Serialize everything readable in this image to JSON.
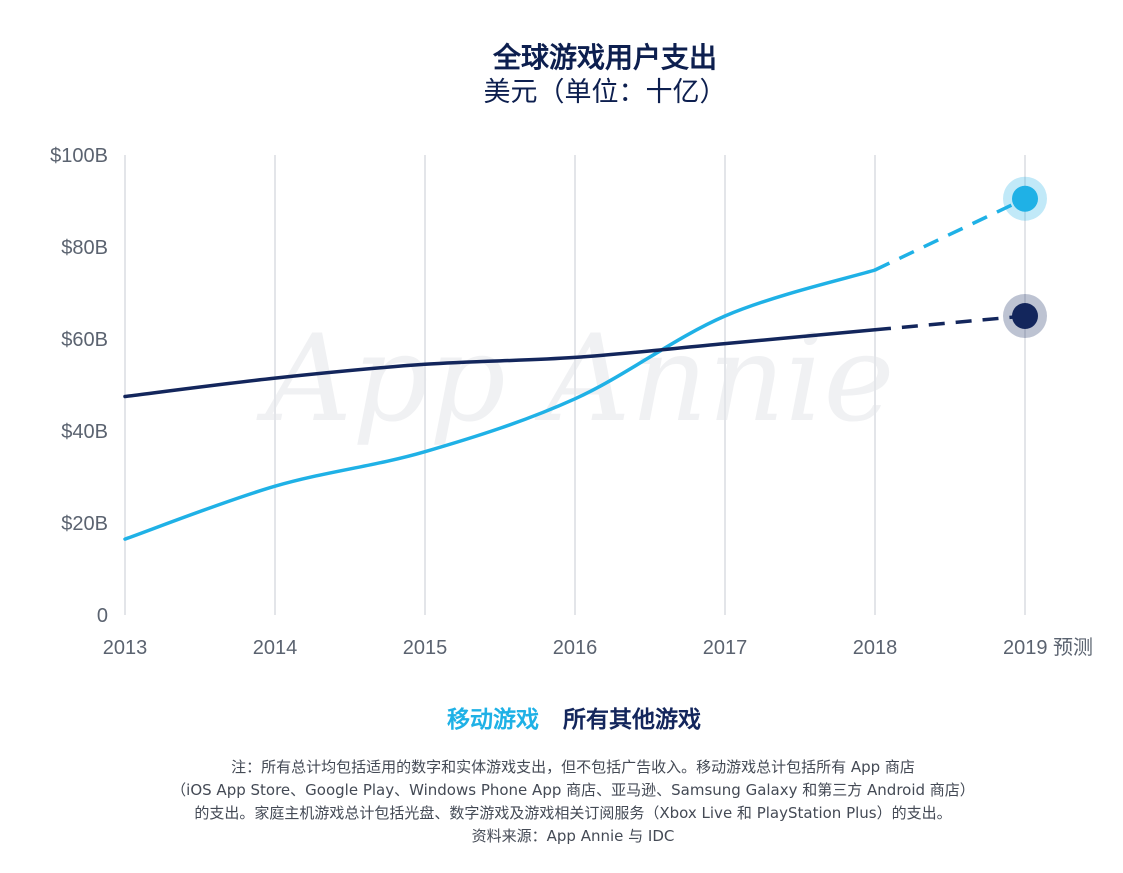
{
  "chart_data": {
    "type": "line",
    "title": "全球游戏用户支出",
    "subtitle": "美元（单位：十亿）",
    "x": [
      "2013",
      "2014",
      "2015",
      "2016",
      "2017",
      "2018",
      "2019 预测"
    ],
    "y_ticks": [
      "0",
      "$20B",
      "$40B",
      "$60B",
      "$80B",
      "$100B"
    ],
    "ylim": [
      0,
      100
    ],
    "grid": "vertical",
    "legend_position": "bottom",
    "forecast_from": "2018",
    "series": [
      {
        "name": "移动游戏",
        "color": "#1fb1e6",
        "values": [
          16.5,
          28,
          35.5,
          47,
          65,
          75,
          90.5
        ]
      },
      {
        "name": "所有其他游戏",
        "color": "#13265c",
        "values": [
          47.5,
          51.5,
          54.5,
          56,
          59,
          62,
          65
        ]
      }
    ],
    "watermark": "App Annie"
  },
  "notes": {
    "line1": "注：所有总计均包括适用的数字和实体游戏支出，但不包括广告收入。移动游戏总计包括所有 App 商店",
    "line2": "（iOS App Store、Google Play、Windows Phone App 商店、亚马逊、Samsung Galaxy 和第三方 Android 商店）",
    "line3": "的支出。家庭主机游戏总计包括光盘、数字游戏及游戏相关订阅服务（Xbox Live 和 PlayStation Plus）的支出。",
    "source": "资料来源：App Annie 与 IDC"
  }
}
